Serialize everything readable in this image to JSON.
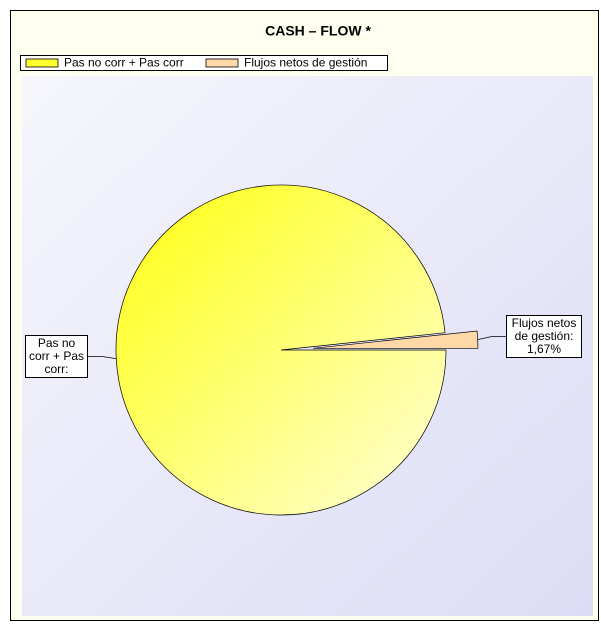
{
  "chart_data": {
    "type": "pie",
    "title": "CASH – FLOW *",
    "categories": [
      "Pas no corr + Pas corr",
      "Flujos netos de gestión"
    ],
    "values": [
      98.33,
      1.67
    ],
    "value_labels": [
      "Pas no corr + Pas corr:",
      "Flujos netos de gestión: 1,67%"
    ],
    "colors": [
      "#ffff30",
      "#ffd8a8"
    ],
    "legend": "top-left"
  }
}
